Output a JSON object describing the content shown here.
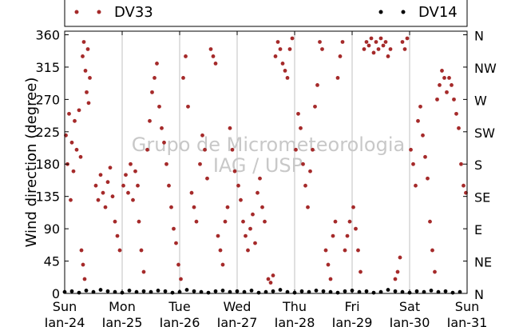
{
  "chart_data": {
    "type": "scatter",
    "title": "",
    "xlabel": "",
    "ylabel": "Wind direction (degree)",
    "ylim": [
      0,
      365
    ],
    "y_ticks": [
      0,
      45,
      90,
      135,
      180,
      225,
      270,
      315,
      360
    ],
    "y2_ticks": [
      {
        "value": 0,
        "label": "N"
      },
      {
        "value": 45,
        "label": "NE"
      },
      {
        "value": 90,
        "label": "E"
      },
      {
        "value": 135,
        "label": "SE"
      },
      {
        "value": 180,
        "label": "S"
      },
      {
        "value": 225,
        "label": "SW"
      },
      {
        "value": 270,
        "label": "W"
      },
      {
        "value": 315,
        "label": "NW"
      },
      {
        "value": 360,
        "label": "N"
      }
    ],
    "xlim": [
      "2010-01-24",
      "2010-01-31"
    ],
    "x_ticks": [
      {
        "date": "2010-01-24",
        "day": "Sun",
        "date_label": "Jan-24"
      },
      {
        "date": "2010-01-25",
        "day": "Mon",
        "date_label": "Jan-25"
      },
      {
        "date": "2010-01-26",
        "day": "Tue",
        "date_label": "Jan-26"
      },
      {
        "date": "2010-01-27",
        "day": "Wed",
        "date_label": "Jan-27"
      },
      {
        "date": "2010-01-28",
        "day": "Thu",
        "date_label": "Jan-28"
      },
      {
        "date": "2010-01-29",
        "day": "Fri",
        "date_label": "Jan-29"
      },
      {
        "date": "2010-01-30",
        "day": "Sat",
        "date_label": "Jan-30"
      },
      {
        "date": "2010-01-31",
        "day": "Sun",
        "date_label": "Jan-31"
      }
    ],
    "grid": "vertical",
    "legend_placement": "top",
    "watermark": [
      "Grupo de Micrometeorologia",
      "IAG / USP"
    ],
    "series": [
      {
        "name": "DV33",
        "color": "#a52a2a",
        "points": [
          [
            "2010-01-24 00:30",
            220
          ],
          [
            "2010-01-24 01:10",
            180
          ],
          [
            "2010-01-24 01:50",
            250
          ],
          [
            "2010-01-24 02:30",
            130
          ],
          [
            "2010-01-24 03:00",
            210
          ],
          [
            "2010-01-24 03:40",
            170
          ],
          [
            "2010-01-24 04:10",
            240
          ],
          [
            "2010-01-24 05:00",
            200
          ],
          [
            "2010-01-24 06:00",
            255
          ],
          [
            "2010-01-24 06:40",
            190
          ],
          [
            "2010-01-24 07:30",
            330
          ],
          [
            "2010-01-24 08:00",
            350
          ],
          [
            "2010-01-24 08:40",
            310
          ],
          [
            "2010-01-24 09:10",
            280
          ],
          [
            "2010-01-24 09:40",
            340
          ],
          [
            "2010-01-24 10:00",
            265
          ],
          [
            "2010-01-24 10:30",
            300
          ],
          [
            "2010-01-24 07:00",
            60
          ],
          [
            "2010-01-24 07:40",
            40
          ],
          [
            "2010-01-24 08:20",
            20
          ],
          [
            "2010-01-24 13:00",
            150
          ],
          [
            "2010-01-24 14:00",
            130
          ],
          [
            "2010-01-24 15:00",
            165
          ],
          [
            "2010-01-24 16:00",
            140
          ],
          [
            "2010-01-24 17:00",
            120
          ],
          [
            "2010-01-24 18:00",
            155
          ],
          [
            "2010-01-24 19:00",
            175
          ],
          [
            "2010-01-24 20:00",
            135
          ],
          [
            "2010-01-24 21:00",
            100
          ],
          [
            "2010-01-24 22:00",
            80
          ],
          [
            "2010-01-24 23:00",
            60
          ],
          [
            "2010-01-25 00:30",
            150
          ],
          [
            "2010-01-25 01:30",
            165
          ],
          [
            "2010-01-25 02:30",
            140
          ],
          [
            "2010-01-25 03:30",
            180
          ],
          [
            "2010-01-25 04:30",
            130
          ],
          [
            "2010-01-25 05:30",
            170
          ],
          [
            "2010-01-25 06:30",
            150
          ],
          [
            "2010-01-25 07:00",
            100
          ],
          [
            "2010-01-25 08:00",
            60
          ],
          [
            "2010-01-25 09:00",
            30
          ],
          [
            "2010-01-25 10:30",
            200
          ],
          [
            "2010-01-25 11:30",
            240
          ],
          [
            "2010-01-25 12:30",
            280
          ],
          [
            "2010-01-25 13:30",
            300
          ],
          [
            "2010-01-25 14:30",
            320
          ],
          [
            "2010-01-25 15:30",
            260
          ],
          [
            "2010-01-25 16:30",
            230
          ],
          [
            "2010-01-25 17:30",
            210
          ],
          [
            "2010-01-25 18:30",
            180
          ],
          [
            "2010-01-25 19:30",
            150
          ],
          [
            "2010-01-25 20:30",
            120
          ],
          [
            "2010-01-25 21:30",
            90
          ],
          [
            "2010-01-25 22:30",
            70
          ],
          [
            "2010-01-25 23:30",
            40
          ],
          [
            "2010-01-26 00:30",
            20
          ],
          [
            "2010-01-26 01:30",
            300
          ],
          [
            "2010-01-26 02:30",
            330
          ],
          [
            "2010-01-26 03:30",
            260
          ],
          [
            "2010-01-26 05:00",
            140
          ],
          [
            "2010-01-26 06:00",
            120
          ],
          [
            "2010-01-26 07:00",
            100
          ],
          [
            "2010-01-26 08:30",
            180
          ],
          [
            "2010-01-26 09:30",
            220
          ],
          [
            "2010-01-26 10:30",
            200
          ],
          [
            "2010-01-26 11:30",
            160
          ],
          [
            "2010-01-26 13:00",
            340
          ],
          [
            "2010-01-26 14:00",
            330
          ],
          [
            "2010-01-26 15:00",
            320
          ],
          [
            "2010-01-26 16:00",
            80
          ],
          [
            "2010-01-26 17:00",
            60
          ],
          [
            "2010-01-26 18:00",
            40
          ],
          [
            "2010-01-26 19:00",
            100
          ],
          [
            "2010-01-26 20:00",
            120
          ],
          [
            "2010-01-26 21:00",
            230
          ],
          [
            "2010-01-26 22:00",
            200
          ],
          [
            "2010-01-26 23:00",
            170
          ],
          [
            "2010-01-27 00:30",
            150
          ],
          [
            "2010-01-27 01:30",
            130
          ],
          [
            "2010-01-27 02:30",
            100
          ],
          [
            "2010-01-27 03:30",
            80
          ],
          [
            "2010-01-27 04:30",
            60
          ],
          [
            "2010-01-27 05:30",
            90
          ],
          [
            "2010-01-27 06:30",
            110
          ],
          [
            "2010-01-27 07:30",
            70
          ],
          [
            "2010-01-27 08:30",
            140
          ],
          [
            "2010-01-27 09:30",
            160
          ],
          [
            "2010-01-27 10:30",
            120
          ],
          [
            "2010-01-27 11:30",
            100
          ],
          [
            "2010-01-27 13:00",
            20
          ],
          [
            "2010-01-27 14:00",
            15
          ],
          [
            "2010-01-27 15:00",
            25
          ],
          [
            "2010-01-27 16:00",
            330
          ],
          [
            "2010-01-27 17:00",
            350
          ],
          [
            "2010-01-27 18:00",
            340
          ],
          [
            "2010-01-27 19:00",
            320
          ],
          [
            "2010-01-27 20:00",
            310
          ],
          [
            "2010-01-27 21:00",
            300
          ],
          [
            "2010-01-27 22:00",
            340
          ],
          [
            "2010-01-27 23:00",
            355
          ],
          [
            "2010-01-28 00:30",
            200
          ],
          [
            "2010-01-28 01:30",
            250
          ],
          [
            "2010-01-28 02:30",
            230
          ],
          [
            "2010-01-28 03:30",
            180
          ],
          [
            "2010-01-28 04:30",
            150
          ],
          [
            "2010-01-28 05:30",
            120
          ],
          [
            "2010-01-28 06:30",
            170
          ],
          [
            "2010-01-28 07:30",
            200
          ],
          [
            "2010-01-28 08:30",
            260
          ],
          [
            "2010-01-28 09:30",
            290
          ],
          [
            "2010-01-28 10:30",
            350
          ],
          [
            "2010-01-28 11:30",
            340
          ],
          [
            "2010-01-28 13:00",
            60
          ],
          [
            "2010-01-28 14:00",
            40
          ],
          [
            "2010-01-28 15:00",
            20
          ],
          [
            "2010-01-28 16:00",
            80
          ],
          [
            "2010-01-28 17:00",
            100
          ],
          [
            "2010-01-28 18:00",
            300
          ],
          [
            "2010-01-28 19:00",
            330
          ],
          [
            "2010-01-28 20:00",
            350
          ],
          [
            "2010-01-28 21:00",
            60
          ],
          [
            "2010-01-28 22:00",
            80
          ],
          [
            "2010-01-28 23:00",
            100
          ],
          [
            "2010-01-29 00:30",
            120
          ],
          [
            "2010-01-29 01:30",
            90
          ],
          [
            "2010-01-29 02:30",
            60
          ],
          [
            "2010-01-29 03:30",
            30
          ],
          [
            "2010-01-29 05:00",
            340
          ],
          [
            "2010-01-29 06:00",
            350
          ],
          [
            "2010-01-29 07:00",
            345
          ],
          [
            "2010-01-29 08:00",
            355
          ],
          [
            "2010-01-29 09:00",
            335
          ],
          [
            "2010-01-29 10:00",
            350
          ],
          [
            "2010-01-29 11:00",
            340
          ],
          [
            "2010-01-29 12:00",
            355
          ],
          [
            "2010-01-29 13:00",
            345
          ],
          [
            "2010-01-29 14:00",
            350
          ],
          [
            "2010-01-29 15:00",
            330
          ],
          [
            "2010-01-29 16:00",
            340
          ],
          [
            "2010-01-29 18:00",
            20
          ],
          [
            "2010-01-29 19:00",
            30
          ],
          [
            "2010-01-29 20:00",
            50
          ],
          [
            "2010-01-29 21:00",
            350
          ],
          [
            "2010-01-29 22:00",
            340
          ],
          [
            "2010-01-29 23:00",
            355
          ],
          [
            "2010-01-30 00:30",
            200
          ],
          [
            "2010-01-30 01:30",
            180
          ],
          [
            "2010-01-30 02:30",
            150
          ],
          [
            "2010-01-30 03:30",
            240
          ],
          [
            "2010-01-30 04:30",
            260
          ],
          [
            "2010-01-30 05:30",
            220
          ],
          [
            "2010-01-30 06:30",
            190
          ],
          [
            "2010-01-30 07:30",
            160
          ],
          [
            "2010-01-30 08:30",
            100
          ],
          [
            "2010-01-30 09:30",
            60
          ],
          [
            "2010-01-30 10:30",
            30
          ],
          [
            "2010-01-30 11:30",
            270
          ],
          [
            "2010-01-30 12:30",
            290
          ],
          [
            "2010-01-30 13:30",
            310
          ],
          [
            "2010-01-30 14:30",
            300
          ],
          [
            "2010-01-30 15:30",
            280
          ],
          [
            "2010-01-30 16:30",
            300
          ],
          [
            "2010-01-30 17:30",
            290
          ],
          [
            "2010-01-30 18:30",
            270
          ],
          [
            "2010-01-30 19:30",
            250
          ],
          [
            "2010-01-30 20:30",
            230
          ],
          [
            "2010-01-30 21:30",
            180
          ],
          [
            "2010-01-30 22:30",
            150
          ],
          [
            "2010-01-30 23:30",
            140
          ]
        ]
      },
      {
        "name": "DV14",
        "color": "#000000",
        "points": [
          [
            "2010-01-24 00:00",
            2
          ],
          [
            "2010-01-24 03:00",
            3
          ],
          [
            "2010-01-24 06:00",
            1
          ],
          [
            "2010-01-24 09:00",
            4
          ],
          [
            "2010-01-24 12:00",
            2
          ],
          [
            "2010-01-24 15:00",
            5
          ],
          [
            "2010-01-24 18:00",
            3
          ],
          [
            "2010-01-24 21:00",
            2
          ],
          [
            "2010-01-25 00:00",
            1
          ],
          [
            "2010-01-25 03:00",
            4
          ],
          [
            "2010-01-25 06:00",
            2
          ],
          [
            "2010-01-25 09:00",
            3
          ],
          [
            "2010-01-25 12:00",
            2
          ],
          [
            "2010-01-25 15:00",
            4
          ],
          [
            "2010-01-25 18:00",
            3
          ],
          [
            "2010-01-25 21:00",
            1
          ],
          [
            "2010-01-26 00:00",
            2
          ],
          [
            "2010-01-26 03:00",
            5
          ],
          [
            "2010-01-26 06:00",
            3
          ],
          [
            "2010-01-26 09:00",
            2
          ],
          [
            "2010-01-26 12:00",
            1
          ],
          [
            "2010-01-26 15:00",
            3
          ],
          [
            "2010-01-26 18:00",
            4
          ],
          [
            "2010-01-26 21:00",
            2
          ],
          [
            "2010-01-27 00:00",
            3
          ],
          [
            "2010-01-27 03:00",
            2
          ],
          [
            "2010-01-27 06:00",
            4
          ],
          [
            "2010-01-27 09:00",
            1
          ],
          [
            "2010-01-27 12:00",
            2
          ],
          [
            "2010-01-27 15:00",
            3
          ],
          [
            "2010-01-27 18:00",
            5
          ],
          [
            "2010-01-27 21:00",
            2
          ],
          [
            "2010-01-28 00:00",
            1
          ],
          [
            "2010-01-28 03:00",
            3
          ],
          [
            "2010-01-28 06:00",
            2
          ],
          [
            "2010-01-28 09:00",
            4
          ],
          [
            "2010-01-28 12:00",
            3
          ],
          [
            "2010-01-28 15:00",
            2
          ],
          [
            "2010-01-28 18:00",
            1
          ],
          [
            "2010-01-28 21:00",
            3
          ],
          [
            "2010-01-29 00:00",
            4
          ],
          [
            "2010-01-29 03:00",
            2
          ],
          [
            "2010-01-29 06:00",
            3
          ],
          [
            "2010-01-29 09:00",
            1
          ],
          [
            "2010-01-29 12:00",
            2
          ],
          [
            "2010-01-29 15:00",
            5
          ],
          [
            "2010-01-29 18:00",
            3
          ],
          [
            "2010-01-29 21:00",
            2
          ],
          [
            "2010-01-30 00:00",
            1
          ],
          [
            "2010-01-30 03:00",
            3
          ],
          [
            "2010-01-30 06:00",
            2
          ],
          [
            "2010-01-30 09:00",
            4
          ],
          [
            "2010-01-30 12:00",
            2
          ],
          [
            "2010-01-30 15:00",
            3
          ],
          [
            "2010-01-30 18:00",
            1
          ],
          [
            "2010-01-30 21:00",
            2
          ]
        ]
      }
    ]
  }
}
